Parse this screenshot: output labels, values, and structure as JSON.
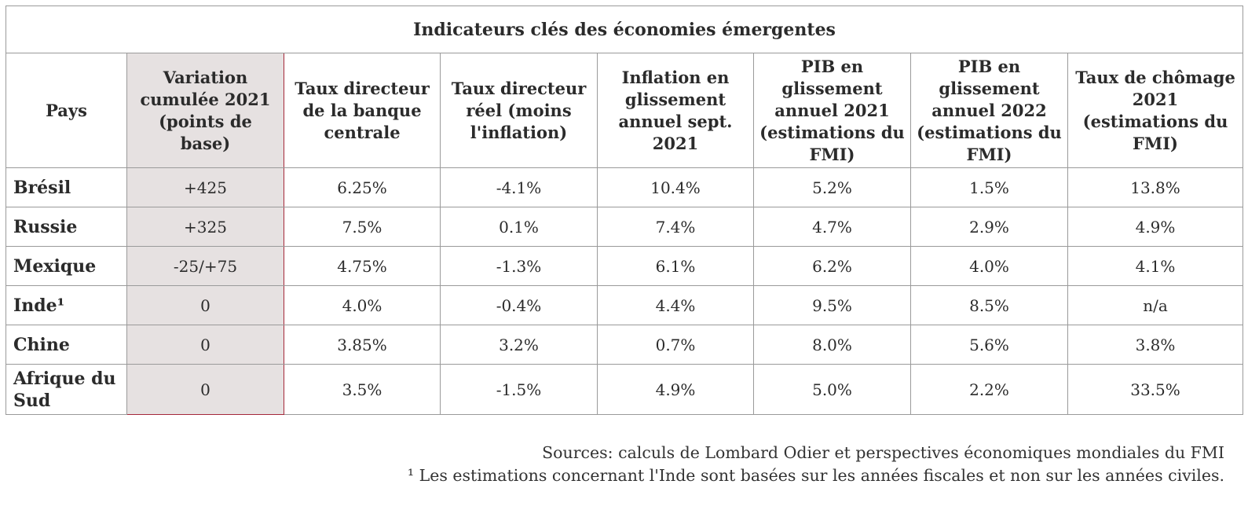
{
  "table": {
    "title": "Indicateurs clés des économies émergentes",
    "headers": [
      "Pays",
      "Variation cumulée 2021 (points de base)",
      "Taux directeur de la banque centrale",
      "Taux directeur réel (moins l'inflation)",
      "Inflation en glissement annuel sept. 2021",
      "PIB en glissement annuel 2021 (estimations du FMI)",
      "PIB en glissement annuel 2022 (estimations du FMI)",
      "Taux de chômage 2021 (estimations du FMI)"
    ],
    "rows": [
      [
        "Brésil",
        "+425",
        "6.25%",
        "-4.1%",
        "10.4%",
        "5.2%",
        "1.5%",
        "13.8%"
      ],
      [
        "Russie",
        "+325",
        "7.5%",
        "0.1%",
        "7.4%",
        "4.7%",
        "2.9%",
        "4.9%"
      ],
      [
        "Mexique",
        "-25/+75",
        "4.75%",
        "-1.3%",
        "6.1%",
        "6.2%",
        "4.0%",
        "4.1%"
      ],
      [
        "Inde¹",
        "0",
        "4.0%",
        "-0.4%",
        "4.4%",
        "9.5%",
        "8.5%",
        "n/a"
      ],
      [
        "Chine",
        "0",
        "3.85%",
        "3.2%",
        "0.7%",
        "8.0%",
        "5.6%",
        "3.8%"
      ],
      [
        "Afrique du Sud",
        "0",
        "3.5%",
        "-1.5%",
        "4.9%",
        "5.0%",
        "2.2%",
        "33.5%"
      ]
    ]
  },
  "sources": {
    "line1": "Sources: calculs de Lombard Odier et perspectives économiques mondiales du FMI",
    "line2": "¹ Les estimations concernant l'Inde sont basées sur les années fiscales et non sur les années civiles."
  },
  "colors": {
    "highlight_fill": "#e6e1e1",
    "highlight_border": "#a4283a",
    "grid": "#9a9a9a"
  }
}
